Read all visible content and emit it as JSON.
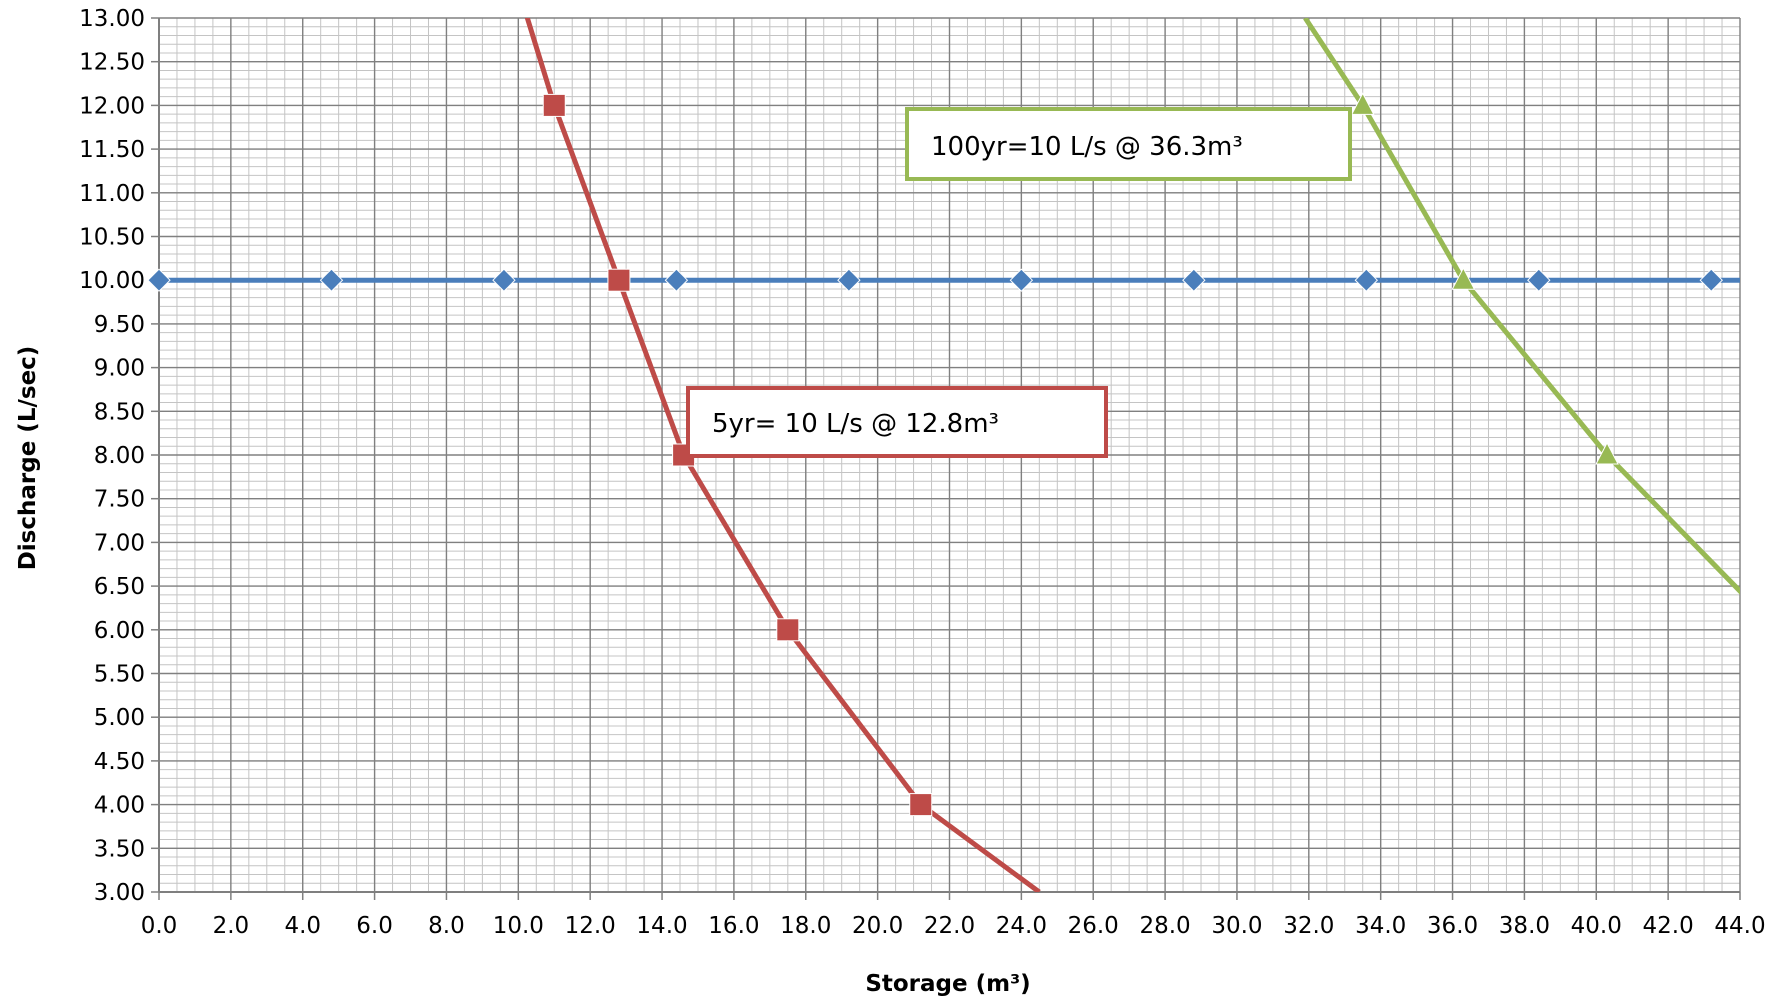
{
  "chart_data": {
    "type": "line",
    "title": "",
    "xlabel": "Storage (m³)",
    "ylabel": "Discharge (L/sec)",
    "xlim": [
      0,
      44
    ],
    "ylim": [
      3,
      13
    ],
    "x_major_step": 2,
    "y_major_step": 0.5,
    "x_minor_step": 0.5,
    "y_minor_step": 0.1,
    "grid": true,
    "legend": "none",
    "x_tick_labels": [
      "0.0",
      "2.0",
      "4.0",
      "6.0",
      "8.0",
      "10.0",
      "12.0",
      "14.0",
      "16.0",
      "18.0",
      "20.0",
      "22.0",
      "24.0",
      "26.0",
      "28.0",
      "30.0",
      "32.0",
      "34.0",
      "36.0",
      "38.0",
      "40.0",
      "42.0",
      "44.0"
    ],
    "y_tick_labels": [
      "3.00",
      "3.50",
      "4.00",
      "4.50",
      "5.00",
      "5.50",
      "6.00",
      "6.50",
      "7.00",
      "7.50",
      "8.00",
      "8.50",
      "9.00",
      "9.50",
      "10.00",
      "10.50",
      "11.00",
      "11.50",
      "12.00",
      "12.50",
      "13.00"
    ],
    "series": [
      {
        "color": "#4a7ebb",
        "marker": "diamond",
        "points": [
          [
            0,
            10
          ],
          [
            4.8,
            10
          ],
          [
            9.6,
            10
          ],
          [
            14.4,
            10
          ],
          [
            19.2,
            10
          ],
          [
            24.0,
            10
          ],
          [
            28.8,
            10
          ],
          [
            33.6,
            10
          ],
          [
            38.4,
            10
          ],
          [
            43.2,
            10
          ],
          [
            48.0,
            10
          ]
        ],
        "markers": [
          [
            0,
            10
          ],
          [
            4.8,
            10
          ],
          [
            9.6,
            10
          ],
          [
            14.4,
            10
          ],
          [
            19.2,
            10
          ],
          [
            24.0,
            10
          ],
          [
            28.8,
            10
          ],
          [
            33.6,
            10
          ],
          [
            38.4,
            10
          ],
          [
            43.2,
            10
          ]
        ]
      },
      {
        "color": "#be4b48",
        "marker": "square",
        "points": [
          [
            9.5,
            14
          ],
          [
            11.0,
            12
          ],
          [
            12.8,
            10
          ],
          [
            14.6,
            8
          ],
          [
            17.5,
            6
          ],
          [
            21.2,
            4
          ],
          [
            24.5,
            3
          ]
        ],
        "markers": [
          [
            11.0,
            12
          ],
          [
            12.8,
            10
          ],
          [
            14.6,
            8
          ],
          [
            17.5,
            6
          ],
          [
            21.2,
            4
          ]
        ]
      },
      {
        "color": "#98b954",
        "marker": "triangle",
        "points": [
          [
            31.9,
            13
          ],
          [
            33.5,
            12
          ],
          [
            36.3,
            10
          ],
          [
            40.3,
            8
          ],
          [
            44.1,
            6.4
          ]
        ],
        "markers": [
          [
            33.5,
            12
          ],
          [
            36.3,
            10
          ],
          [
            40.3,
            8
          ]
        ]
      }
    ],
    "annotations": [
      {
        "text": "100yr=10 L/s @ 36.3m³",
        "border_color": "#98b954"
      },
      {
        "text": "5yr= 10 L/s @ 12.8m³",
        "border_color": "#be4b48"
      }
    ]
  }
}
